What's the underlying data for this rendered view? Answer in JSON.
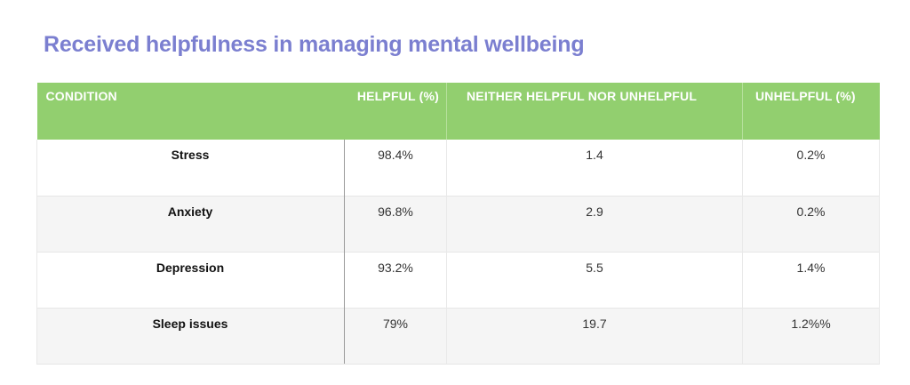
{
  "title": "Received helpfulness in managing mental wellbeing",
  "table": {
    "headers": {
      "condition": "CONDITION",
      "helpful": "HELPFUL (%)",
      "neither": "NEITHER HELPFUL NOR UNHELPFUL",
      "unhelpful": "UNHELPFUL (%)"
    },
    "rows": [
      {
        "condition": "Stress",
        "helpful": "98.4%",
        "neither": "1.4",
        "unhelpful": "0.2%"
      },
      {
        "condition": "Anxiety",
        "helpful": "96.8%",
        "neither": "2.9",
        "unhelpful": "0.2%"
      },
      {
        "condition": "Depression",
        "helpful": "93.2%",
        "neither": "5.5",
        "unhelpful": "1.4%"
      },
      {
        "condition": "Sleep issues",
        "helpful": "79%",
        "neither": "19.7",
        "unhelpful": "1.2%%"
      }
    ]
  },
  "colors": {
    "title": "#7b7fd0",
    "header_bg": "#92cf6f",
    "header_text": "#ffffff",
    "row_shade": "#f5f5f5"
  }
}
